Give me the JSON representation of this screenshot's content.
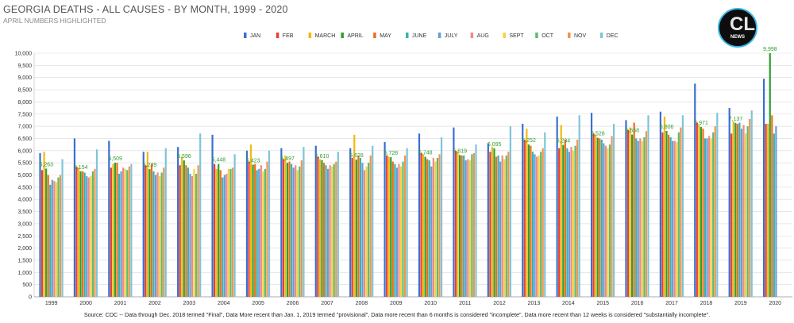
{
  "title": "GEORGIA DEATHS - ALL CAUSES - BY MONTH, 1999 - 2020",
  "subtitle": "APRIL NUMBERS HIGHLIGHTED",
  "footer": "Source: CDC -- Data through Dec. 2018 termed \"Final\", Data More recent than Jan. 1, 2019 termed \"provisional\", Data more recent than 6 months is considered \"incomplete\", Data more recent than 12 weeks is considered \"substantially incomplete\".",
  "logo": {
    "mark": "CL",
    "text": "NEWS"
  },
  "chart_data": {
    "type": "bar",
    "categories": [
      "1999",
      "2000",
      "2001",
      "2002",
      "2003",
      "2004",
      "2005",
      "2006",
      "2007",
      "2008",
      "2009",
      "2010",
      "2011",
      "2012",
      "2013",
      "2014",
      "2015",
      "2016",
      "2017",
      "2018",
      "2019",
      "2020"
    ],
    "ylim": [
      0,
      10000
    ],
    "yticks": [
      0,
      500,
      1000,
      1500,
      2000,
      2500,
      3000,
      3500,
      4000,
      4500,
      5000,
      5500,
      6000,
      6500,
      7000,
      7500,
      8000,
      8500,
      9000,
      9500,
      10000
    ],
    "ytick_labels": [
      "0",
      "500",
      "1,000",
      "1,500",
      "2,000",
      "2,500",
      "3,000",
      "3,500",
      "4,000",
      "4,500",
      "5,000",
      "5,500",
      "6,000",
      "6,500",
      "7,000",
      "7,500",
      "8,000",
      "8,500",
      "9,000",
      "9,500",
      "10,000"
    ],
    "grid": true,
    "legend_position": "top",
    "highlight_series": "APRIL",
    "series": [
      {
        "name": "JAN",
        "color": "#3a6fd1",
        "values": [
          5900,
          6500,
          6400,
          5950,
          6150,
          6650,
          6000,
          6100,
          6200,
          6100,
          6350,
          6700,
          6950,
          6300,
          7100,
          7400,
          7550,
          7250,
          7600,
          8750,
          7750,
          8950
        ]
      },
      {
        "name": "FEB",
        "color": "#e8402f",
        "values": [
          5200,
          5350,
          5300,
          5400,
          5400,
          5450,
          5550,
          5650,
          5750,
          5700,
          5800,
          5900,
          6000,
          5950,
          6450,
          6100,
          6700,
          6850,
          6750,
          7150,
          6700,
          7100
        ]
      },
      {
        "name": "MARCH",
        "color": "#f2b90f",
        "values": [
          5950,
          5300,
          5450,
          5950,
          5750,
          5250,
          6250,
          5800,
          5650,
          6650,
          5750,
          5850,
          5950,
          6150,
          6900,
          7050,
          6650,
          6950,
          7400,
          7050,
          7200,
          7100
        ]
      },
      {
        "name": "APRIL",
        "color": "#2f9e2f",
        "values": [
          5263,
          5154,
          5509,
          5239,
          5596,
          5448,
          5423,
          5497,
          5610,
          5628,
          5728,
          5748,
          5819,
          6095,
          6252,
          6234,
          6528,
          6658,
          6806,
          6971,
          7137,
          9998
        ]
      },
      {
        "name": "MAY",
        "color": "#f06e15",
        "values": [
          5000,
          5150,
          5500,
          5450,
          5400,
          5200,
          5450,
          5550,
          5500,
          5800,
          5550,
          5650,
          5800,
          5750,
          6200,
          6450,
          6500,
          7150,
          6650,
          6900,
          7100,
          7450
        ]
      },
      {
        "name": "JUNE",
        "color": "#3ab0b5",
        "values": [
          4600,
          5100,
          5050,
          5150,
          5300,
          4900,
          5200,
          5450,
          5400,
          5700,
          5450,
          5600,
          5800,
          5800,
          5950,
          6100,
          6450,
          6500,
          6550,
          6500,
          7150,
          6700
        ]
      },
      {
        "name": "JULY",
        "color": "#6b9bd6",
        "values": [
          4800,
          4950,
          5150,
          5000,
          5050,
          5000,
          5250,
          5300,
          5250,
          5500,
          5300,
          5350,
          5600,
          5550,
          5850,
          5950,
          6300,
          6400,
          6400,
          6500,
          6900,
          7000
        ]
      },
      {
        "name": "AUG",
        "color": "#ef8a85",
        "values": [
          4750,
          4900,
          5300,
          5100,
          4950,
          5050,
          5400,
          5400,
          5400,
          5200,
          5450,
          5700,
          5650,
          5800,
          5750,
          6150,
          6200,
          6500,
          6400,
          6600,
          7050,
          null
        ]
      },
      {
        "name": "SEPT",
        "color": "#f5d243",
        "values": [
          4700,
          4950,
          5250,
          4950,
          5250,
          5250,
          5150,
          5200,
          5350,
          5350,
          5350,
          5550,
          5600,
          5650,
          5800,
          6000,
          6100,
          6400,
          6350,
          6500,
          6700,
          null
        ]
      },
      {
        "name": "OCT",
        "color": "#5cbb6b",
        "values": [
          4900,
          5150,
          5200,
          5100,
          5050,
          5250,
          5250,
          5350,
          5450,
          5500,
          5550,
          5700,
          5850,
          5800,
          5950,
          6200,
          6250,
          6550,
          6750,
          6750,
          7000,
          null
        ]
      },
      {
        "name": "NOV",
        "color": "#f09550",
        "values": [
          5000,
          5250,
          5350,
          5300,
          5400,
          5300,
          5550,
          5600,
          5550,
          5800,
          5800,
          5850,
          5900,
          5950,
          6100,
          6450,
          6600,
          6800,
          6950,
          7000,
          7300,
          null
        ]
      },
      {
        "name": "DEC",
        "color": "#7ec5d9",
        "values": [
          5650,
          6050,
          5450,
          6100,
          6700,
          5850,
          6000,
          6150,
          5950,
          6200,
          6100,
          6550,
          6250,
          7000,
          6750,
          7450,
          7100,
          7450,
          7450,
          7550,
          7650,
          null
        ]
      }
    ],
    "data_labels": {
      "series": "APRIL",
      "labels": [
        "5,263",
        "5,154",
        "5,509",
        "5,239",
        "5,596",
        "5,448",
        "5,423",
        "5,497",
        "5,610",
        "5,628",
        "5,728",
        "5,748",
        "5,819",
        "6,095",
        "6,252",
        "6,234",
        "6,528",
        "6,658",
        "6,806",
        "6,971",
        "7,137",
        "9,998"
      ]
    }
  }
}
